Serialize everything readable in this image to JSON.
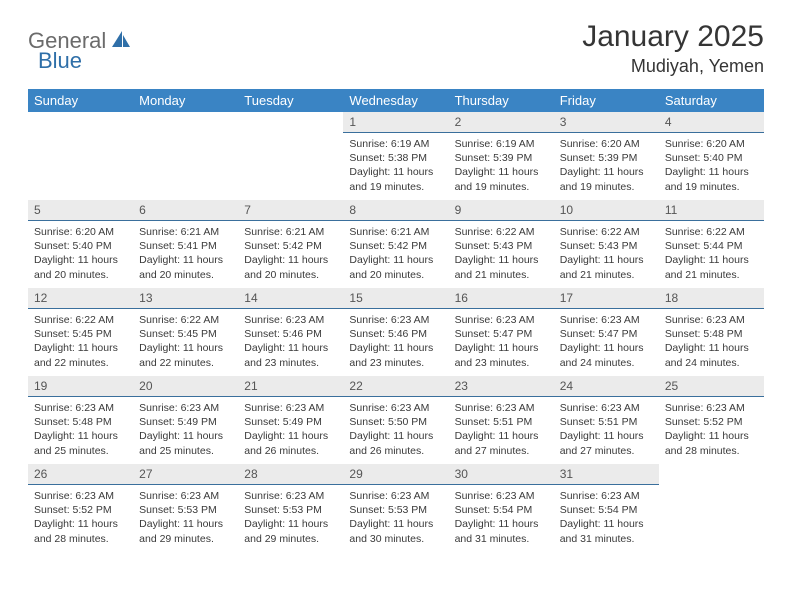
{
  "brand": {
    "part1": "General",
    "part2": "Blue"
  },
  "title": "January 2025",
  "location": "Mudiyah, Yemen",
  "colors": {
    "header_bg": "#3a84c4",
    "header_text": "#ffffff",
    "daynum_bg": "#ebebeb",
    "daynum_border": "#3a6f9c",
    "logo_gray": "#6b6b6b",
    "logo_blue": "#2f6fa8",
    "body_text": "#3a3a3a"
  },
  "weekdays": [
    "Sunday",
    "Monday",
    "Tuesday",
    "Wednesday",
    "Thursday",
    "Friday",
    "Saturday"
  ],
  "weeks": [
    [
      {
        "n": "",
        "lines": []
      },
      {
        "n": "",
        "lines": []
      },
      {
        "n": "",
        "lines": []
      },
      {
        "n": "1",
        "lines": [
          "Sunrise: 6:19 AM",
          "Sunset: 5:38 PM",
          "Daylight: 11 hours and 19 minutes."
        ]
      },
      {
        "n": "2",
        "lines": [
          "Sunrise: 6:19 AM",
          "Sunset: 5:39 PM",
          "Daylight: 11 hours and 19 minutes."
        ]
      },
      {
        "n": "3",
        "lines": [
          "Sunrise: 6:20 AM",
          "Sunset: 5:39 PM",
          "Daylight: 11 hours and 19 minutes."
        ]
      },
      {
        "n": "4",
        "lines": [
          "Sunrise: 6:20 AM",
          "Sunset: 5:40 PM",
          "Daylight: 11 hours and 19 minutes."
        ]
      }
    ],
    [
      {
        "n": "5",
        "lines": [
          "Sunrise: 6:20 AM",
          "Sunset: 5:40 PM",
          "Daylight: 11 hours and 20 minutes."
        ]
      },
      {
        "n": "6",
        "lines": [
          "Sunrise: 6:21 AM",
          "Sunset: 5:41 PM",
          "Daylight: 11 hours and 20 minutes."
        ]
      },
      {
        "n": "7",
        "lines": [
          "Sunrise: 6:21 AM",
          "Sunset: 5:42 PM",
          "Daylight: 11 hours and 20 minutes."
        ]
      },
      {
        "n": "8",
        "lines": [
          "Sunrise: 6:21 AM",
          "Sunset: 5:42 PM",
          "Daylight: 11 hours and 20 minutes."
        ]
      },
      {
        "n": "9",
        "lines": [
          "Sunrise: 6:22 AM",
          "Sunset: 5:43 PM",
          "Daylight: 11 hours and 21 minutes."
        ]
      },
      {
        "n": "10",
        "lines": [
          "Sunrise: 6:22 AM",
          "Sunset: 5:43 PM",
          "Daylight: 11 hours and 21 minutes."
        ]
      },
      {
        "n": "11",
        "lines": [
          "Sunrise: 6:22 AM",
          "Sunset: 5:44 PM",
          "Daylight: 11 hours and 21 minutes."
        ]
      }
    ],
    [
      {
        "n": "12",
        "lines": [
          "Sunrise: 6:22 AM",
          "Sunset: 5:45 PM",
          "Daylight: 11 hours and 22 minutes."
        ]
      },
      {
        "n": "13",
        "lines": [
          "Sunrise: 6:22 AM",
          "Sunset: 5:45 PM",
          "Daylight: 11 hours and 22 minutes."
        ]
      },
      {
        "n": "14",
        "lines": [
          "Sunrise: 6:23 AM",
          "Sunset: 5:46 PM",
          "Daylight: 11 hours and 23 minutes."
        ]
      },
      {
        "n": "15",
        "lines": [
          "Sunrise: 6:23 AM",
          "Sunset: 5:46 PM",
          "Daylight: 11 hours and 23 minutes."
        ]
      },
      {
        "n": "16",
        "lines": [
          "Sunrise: 6:23 AM",
          "Sunset: 5:47 PM",
          "Daylight: 11 hours and 23 minutes."
        ]
      },
      {
        "n": "17",
        "lines": [
          "Sunrise: 6:23 AM",
          "Sunset: 5:47 PM",
          "Daylight: 11 hours and 24 minutes."
        ]
      },
      {
        "n": "18",
        "lines": [
          "Sunrise: 6:23 AM",
          "Sunset: 5:48 PM",
          "Daylight: 11 hours and 24 minutes."
        ]
      }
    ],
    [
      {
        "n": "19",
        "lines": [
          "Sunrise: 6:23 AM",
          "Sunset: 5:48 PM",
          "Daylight: 11 hours and 25 minutes."
        ]
      },
      {
        "n": "20",
        "lines": [
          "Sunrise: 6:23 AM",
          "Sunset: 5:49 PM",
          "Daylight: 11 hours and 25 minutes."
        ]
      },
      {
        "n": "21",
        "lines": [
          "Sunrise: 6:23 AM",
          "Sunset: 5:49 PM",
          "Daylight: 11 hours and 26 minutes."
        ]
      },
      {
        "n": "22",
        "lines": [
          "Sunrise: 6:23 AM",
          "Sunset: 5:50 PM",
          "Daylight: 11 hours and 26 minutes."
        ]
      },
      {
        "n": "23",
        "lines": [
          "Sunrise: 6:23 AM",
          "Sunset: 5:51 PM",
          "Daylight: 11 hours and 27 minutes."
        ]
      },
      {
        "n": "24",
        "lines": [
          "Sunrise: 6:23 AM",
          "Sunset: 5:51 PM",
          "Daylight: 11 hours and 27 minutes."
        ]
      },
      {
        "n": "25",
        "lines": [
          "Sunrise: 6:23 AM",
          "Sunset: 5:52 PM",
          "Daylight: 11 hours and 28 minutes."
        ]
      }
    ],
    [
      {
        "n": "26",
        "lines": [
          "Sunrise: 6:23 AM",
          "Sunset: 5:52 PM",
          "Daylight: 11 hours and 28 minutes."
        ]
      },
      {
        "n": "27",
        "lines": [
          "Sunrise: 6:23 AM",
          "Sunset: 5:53 PM",
          "Daylight: 11 hours and 29 minutes."
        ]
      },
      {
        "n": "28",
        "lines": [
          "Sunrise: 6:23 AM",
          "Sunset: 5:53 PM",
          "Daylight: 11 hours and 29 minutes."
        ]
      },
      {
        "n": "29",
        "lines": [
          "Sunrise: 6:23 AM",
          "Sunset: 5:53 PM",
          "Daylight: 11 hours and 30 minutes."
        ]
      },
      {
        "n": "30",
        "lines": [
          "Sunrise: 6:23 AM",
          "Sunset: 5:54 PM",
          "Daylight: 11 hours and 31 minutes."
        ]
      },
      {
        "n": "31",
        "lines": [
          "Sunrise: 6:23 AM",
          "Sunset: 5:54 PM",
          "Daylight: 11 hours and 31 minutes."
        ]
      },
      {
        "n": "",
        "lines": []
      }
    ]
  ]
}
